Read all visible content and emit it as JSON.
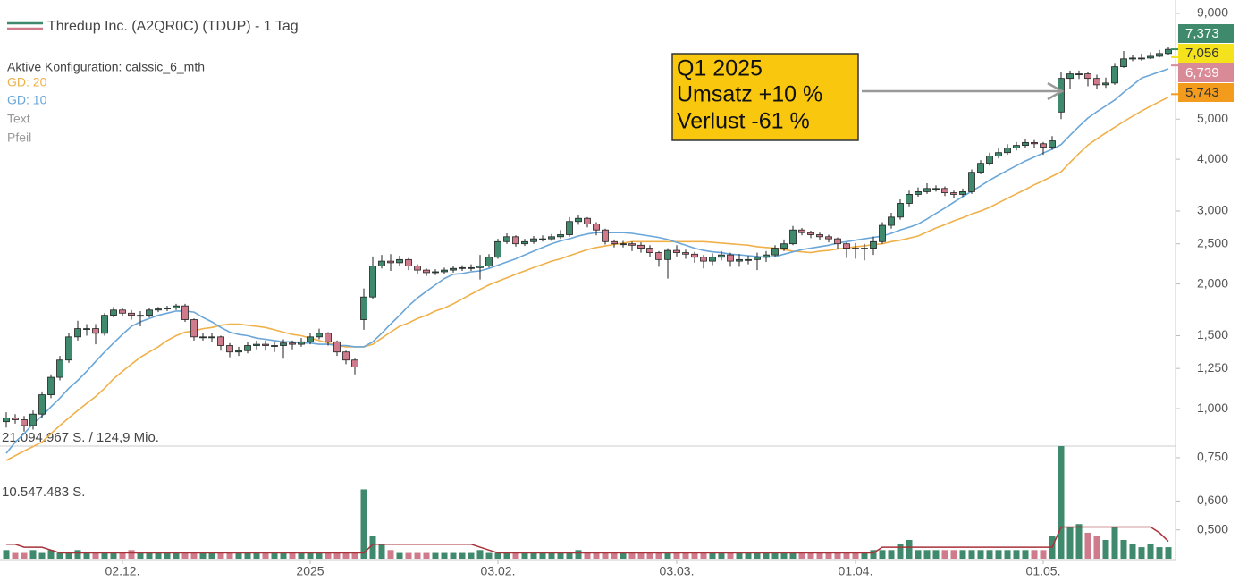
{
  "chart_data": {
    "type": "candlestick",
    "title": "Thredup Inc. (A2QR0C) (TDUP) - 1 Tag",
    "subtitle": "Aktive Konfiguration: calssic_6_mth",
    "legend_items": [
      "Text",
      "Pfeil"
    ],
    "log_scale": true,
    "grid": false,
    "up_color": "#3f8a6c",
    "down_color": "#cf7b8b",
    "ylim": [
      0.82,
      9.55
    ],
    "yticks": [
      {
        "value": 1,
        "label": "1,000"
      },
      {
        "value": 1.25,
        "label": "1,250"
      },
      {
        "value": 1.5,
        "label": "1,500"
      },
      {
        "value": 2,
        "label": "2,000"
      },
      {
        "value": 2.5,
        "label": "2,500"
      },
      {
        "value": 3,
        "label": "3,000"
      },
      {
        "value": 4,
        "label": "4,000"
      },
      {
        "value": 5,
        "label": "5,000"
      },
      {
        "value": 9,
        "label": "9,000"
      }
    ],
    "xlim": [
      -0.5,
      130.5
    ],
    "xticks": [
      {
        "value": 13,
        "label": "02.12."
      },
      {
        "value": 34,
        "label": "2025"
      },
      {
        "value": 55,
        "label": "03.02."
      },
      {
        "value": 75,
        "label": "03.03."
      },
      {
        "value": 95,
        "label": "01.04."
      },
      {
        "value": 116,
        "label": "01.05."
      }
    ],
    "open": [
      0.93,
      0.95,
      0.94,
      0.91,
      0.97,
      1.08,
      1.19,
      1.31,
      1.49,
      1.56,
      1.56,
      1.52,
      1.68,
      1.73,
      1.7,
      1.68,
      1.68,
      1.73,
      1.74,
      1.75,
      1.77,
      1.64,
      1.49,
      1.49,
      1.49,
      1.42,
      1.37,
      1.38,
      1.42,
      1.43,
      1.42,
      1.42,
      1.44,
      1.43,
      1.45,
      1.49,
      1.52,
      1.45,
      1.37,
      1.31,
      1.64,
      1.86,
      2.21,
      2.27,
      2.25,
      2.29,
      2.21,
      2.16,
      2.13,
      2.14,
      2.16,
      2.18,
      2.19,
      2.19,
      2.21,
      2.32,
      2.53,
      2.6,
      2.5,
      2.53,
      2.57,
      2.57,
      2.6,
      2.63,
      2.83,
      2.88,
      2.79,
      2.7,
      2.53,
      2.5,
      2.5,
      2.48,
      2.44,
      2.38,
      2.29,
      2.41,
      2.38,
      2.36,
      2.32,
      2.27,
      2.32,
      2.35,
      2.27,
      2.29,
      2.29,
      2.32,
      2.35,
      2.44,
      2.5,
      2.7,
      2.66,
      2.63,
      2.6,
      2.57,
      2.5,
      2.44,
      2.43,
      2.44,
      2.53,
      2.77,
      2.9,
      3.13,
      3.29,
      3.34,
      3.4,
      3.4,
      3.32,
      3.29,
      3.34,
      3.72,
      3.91,
      4.07,
      4.15,
      4.26,
      4.32,
      4.39,
      4.36,
      4.28,
      5.2,
      6.27,
      6.43,
      6.43,
      6.27,
      6.05,
      6.11,
      6.69,
      6.99,
      7.02,
      7.02,
      7.09,
      7.2
    ],
    "high": [
      0.98,
      0.97,
      0.96,
      0.99,
      1.1,
      1.21,
      1.34,
      1.52,
      1.63,
      1.6,
      1.6,
      1.7,
      1.76,
      1.75,
      1.73,
      1.72,
      1.75,
      1.76,
      1.77,
      1.79,
      1.79,
      1.65,
      1.52,
      1.52,
      1.5,
      1.44,
      1.41,
      1.45,
      1.46,
      1.46,
      1.45,
      1.47,
      1.46,
      1.48,
      1.52,
      1.56,
      1.53,
      1.46,
      1.38,
      1.32,
      1.95,
      2.33,
      2.35,
      2.36,
      2.34,
      2.31,
      2.23,
      2.18,
      2.17,
      2.19,
      2.21,
      2.22,
      2.23,
      2.35,
      2.36,
      2.57,
      2.65,
      2.62,
      2.57,
      2.61,
      2.62,
      2.64,
      2.7,
      2.9,
      2.93,
      2.9,
      2.82,
      2.72,
      2.56,
      2.54,
      2.53,
      2.52,
      2.48,
      2.4,
      2.44,
      2.48,
      2.42,
      2.39,
      2.35,
      2.37,
      2.4,
      2.38,
      2.36,
      2.34,
      2.38,
      2.4,
      2.48,
      2.56,
      2.76,
      2.73,
      2.69,
      2.66,
      2.63,
      2.59,
      2.52,
      2.51,
      2.5,
      2.6,
      2.82,
      2.97,
      3.2,
      3.36,
      3.42,
      3.5,
      3.46,
      3.44,
      3.36,
      3.4,
      3.78,
      3.98,
      4.15,
      4.25,
      4.35,
      4.4,
      4.48,
      4.45,
      4.4,
      4.55,
      6.5,
      6.55,
      6.55,
      6.5,
      6.4,
      6.3,
      6.8,
      7.3,
      7.15,
      7.2,
      7.25,
      7.35,
      7.45
    ],
    "low": [
      0.9,
      0.92,
      0.88,
      0.89,
      0.95,
      1.06,
      1.17,
      1.29,
      1.46,
      1.5,
      1.43,
      1.5,
      1.66,
      1.67,
      1.64,
      1.58,
      1.66,
      1.71,
      1.72,
      1.73,
      1.62,
      1.46,
      1.46,
      1.45,
      1.38,
      1.33,
      1.34,
      1.36,
      1.39,
      1.38,
      1.37,
      1.32,
      1.39,
      1.41,
      1.43,
      1.47,
      1.42,
      1.34,
      1.28,
      1.21,
      1.55,
      1.84,
      2.18,
      2.15,
      2.21,
      2.16,
      2.12,
      2.09,
      2.1,
      2.11,
      2.13,
      2.15,
      2.15,
      2.05,
      2.19,
      2.3,
      2.5,
      2.46,
      2.47,
      2.5,
      2.53,
      2.54,
      2.57,
      2.6,
      2.78,
      2.74,
      2.62,
      2.49,
      2.45,
      2.45,
      2.4,
      2.38,
      2.32,
      2.2,
      2.06,
      2.33,
      2.3,
      2.25,
      2.18,
      2.22,
      2.28,
      2.2,
      2.2,
      2.23,
      2.16,
      2.26,
      2.33,
      2.4,
      2.48,
      2.62,
      2.58,
      2.55,
      2.52,
      2.43,
      2.31,
      2.3,
      2.28,
      2.35,
      2.5,
      2.72,
      2.86,
      3.08,
      3.25,
      3.3,
      3.34,
      3.26,
      3.23,
      3.25,
      3.3,
      3.68,
      3.86,
      4.02,
      4.1,
      4.2,
      4.26,
      4.25,
      4.1,
      4.22,
      5.0,
      5.9,
      6.25,
      6.0,
      5.9,
      5.95,
      6.05,
      6.65,
      6.9,
      6.92,
      6.98,
      7.05,
      7.15
    ],
    "close": [
      0.95,
      0.94,
      0.91,
      0.97,
      1.08,
      1.19,
      1.31,
      1.49,
      1.56,
      1.56,
      1.52,
      1.68,
      1.73,
      1.7,
      1.68,
      1.68,
      1.73,
      1.74,
      1.75,
      1.77,
      1.64,
      1.49,
      1.49,
      1.49,
      1.42,
      1.37,
      1.38,
      1.42,
      1.43,
      1.42,
      1.42,
      1.44,
      1.43,
      1.45,
      1.49,
      1.52,
      1.45,
      1.37,
      1.31,
      1.26,
      1.86,
      2.21,
      2.27,
      2.25,
      2.29,
      2.21,
      2.16,
      2.13,
      2.14,
      2.16,
      2.18,
      2.19,
      2.19,
      2.21,
      2.32,
      2.53,
      2.6,
      2.5,
      2.53,
      2.57,
      2.57,
      2.6,
      2.63,
      2.83,
      2.88,
      2.79,
      2.7,
      2.53,
      2.5,
      2.5,
      2.48,
      2.44,
      2.38,
      2.29,
      2.41,
      2.38,
      2.36,
      2.32,
      2.27,
      2.32,
      2.35,
      2.27,
      2.29,
      2.29,
      2.32,
      2.35,
      2.44,
      2.5,
      2.7,
      2.66,
      2.63,
      2.6,
      2.57,
      2.5,
      2.44,
      2.43,
      2.44,
      2.53,
      2.77,
      2.9,
      3.13,
      3.29,
      3.34,
      3.4,
      3.4,
      3.32,
      3.29,
      3.34,
      3.72,
      3.91,
      4.07,
      4.15,
      4.26,
      4.32,
      4.39,
      4.36,
      4.28,
      4.43,
      6.27,
      6.43,
      6.43,
      6.27,
      6.05,
      6.11,
      6.69,
      6.99,
      7.02,
      7.02,
      7.09,
      7.2,
      7.37
    ],
    "series": [
      {
        "name": "GD: 20",
        "color": "#f0b04a",
        "values": [
          0.75,
          0.77,
          0.79,
          0.81,
          0.83,
          0.87,
          0.91,
          0.95,
          0.99,
          1.03,
          1.07,
          1.12,
          1.18,
          1.23,
          1.28,
          1.33,
          1.37,
          1.41,
          1.46,
          1.5,
          1.53,
          1.54,
          1.56,
          1.57,
          1.59,
          1.6,
          1.6,
          1.59,
          1.58,
          1.57,
          1.55,
          1.53,
          1.51,
          1.5,
          1.48,
          1.46,
          1.44,
          1.42,
          1.41,
          1.41,
          1.41,
          1.43,
          1.48,
          1.53,
          1.58,
          1.61,
          1.65,
          1.68,
          1.72,
          1.75,
          1.79,
          1.84,
          1.89,
          1.94,
          1.99,
          2.03,
          2.07,
          2.11,
          2.15,
          2.19,
          2.23,
          2.27,
          2.3,
          2.34,
          2.38,
          2.42,
          2.45,
          2.47,
          2.49,
          2.51,
          2.53,
          2.53,
          2.53,
          2.53,
          2.53,
          2.53,
          2.53,
          2.53,
          2.53,
          2.52,
          2.51,
          2.5,
          2.49,
          2.48,
          2.46,
          2.45,
          2.44,
          2.42,
          2.4,
          2.39,
          2.38,
          2.4,
          2.41,
          2.43,
          2.44,
          2.46,
          2.47,
          2.49,
          2.5,
          2.53,
          2.55,
          2.58,
          2.61,
          2.67,
          2.73,
          2.78,
          2.84,
          2.89,
          2.95,
          3.0,
          3.06,
          3.14,
          3.22,
          3.3,
          3.38,
          3.47,
          3.55,
          3.64,
          3.73,
          3.93,
          4.13,
          4.33,
          4.48,
          4.63,
          4.78,
          4.93,
          5.08,
          5.23,
          5.37,
          5.51,
          5.65
        ]
      },
      {
        "name": "GD: 10",
        "color": "#6aa6d8",
        "values": [
          0.78,
          0.83,
          0.87,
          0.92,
          0.96,
          1.01,
          1.06,
          1.12,
          1.17,
          1.23,
          1.3,
          1.37,
          1.44,
          1.51,
          1.58,
          1.62,
          1.65,
          1.68,
          1.7,
          1.72,
          1.72,
          1.71,
          1.66,
          1.62,
          1.57,
          1.53,
          1.51,
          1.5,
          1.48,
          1.47,
          1.46,
          1.45,
          1.45,
          1.44,
          1.44,
          1.43,
          1.43,
          1.42,
          1.42,
          1.41,
          1.41,
          1.45,
          1.52,
          1.6,
          1.68,
          1.77,
          1.85,
          1.92,
          1.99,
          2.06,
          2.11,
          2.12,
          2.14,
          2.15,
          2.18,
          2.22,
          2.26,
          2.3,
          2.35,
          2.4,
          2.45,
          2.5,
          2.54,
          2.57,
          2.61,
          2.64,
          2.66,
          2.66,
          2.66,
          2.66,
          2.65,
          2.63,
          2.61,
          2.59,
          2.56,
          2.52,
          2.48,
          2.44,
          2.41,
          2.39,
          2.38,
          2.36,
          2.35,
          2.34,
          2.33,
          2.32,
          2.33,
          2.36,
          2.39,
          2.42,
          2.44,
          2.46,
          2.48,
          2.51,
          2.53,
          2.55,
          2.57,
          2.59,
          2.61,
          2.65,
          2.7,
          2.74,
          2.79,
          2.87,
          2.96,
          3.05,
          3.15,
          3.25,
          3.35,
          3.45,
          3.56,
          3.66,
          3.76,
          3.86,
          3.96,
          4.05,
          4.14,
          4.23,
          4.34,
          4.57,
          4.8,
          5.03,
          5.21,
          5.38,
          5.56,
          5.8,
          6.04,
          6.28,
          6.39,
          6.5,
          6.61
        ]
      }
    ],
    "volume": {
      "labels": [
        "21.094.967 S. / 124,9 Mio.",
        "10.547.483 S."
      ],
      "ylim": [
        0.4,
        0.79
      ],
      "yticks": [
        {
          "value": 0.5,
          "label": "0,500"
        },
        {
          "value": 0.6,
          "label": "0,600"
        },
        {
          "value": 0.75,
          "label": "0,750"
        }
      ],
      "values": [
        0.43,
        0.42,
        0.42,
        0.43,
        0.42,
        0.43,
        0.42,
        0.42,
        0.43,
        0.42,
        0.42,
        0.42,
        0.42,
        0.42,
        0.43,
        0.42,
        0.42,
        0.42,
        0.42,
        0.42,
        0.42,
        0.42,
        0.42,
        0.42,
        0.42,
        0.42,
        0.42,
        0.42,
        0.42,
        0.42,
        0.42,
        0.42,
        0.42,
        0.42,
        0.42,
        0.42,
        0.42,
        0.42,
        0.42,
        0.42,
        0.64,
        0.48,
        0.45,
        0.43,
        0.42,
        0.42,
        0.42,
        0.42,
        0.42,
        0.42,
        0.42,
        0.42,
        0.42,
        0.43,
        0.42,
        0.42,
        0.42,
        0.42,
        0.42,
        0.42,
        0.42,
        0.42,
        0.42,
        0.42,
        0.43,
        0.42,
        0.42,
        0.42,
        0.42,
        0.42,
        0.42,
        0.42,
        0.42,
        0.42,
        0.42,
        0.42,
        0.42,
        0.42,
        0.42,
        0.42,
        0.42,
        0.42,
        0.42,
        0.42,
        0.42,
        0.42,
        0.42,
        0.42,
        0.42,
        0.42,
        0.42,
        0.42,
        0.42,
        0.42,
        0.42,
        0.42,
        0.42,
        0.43,
        0.43,
        0.43,
        0.45,
        0.465,
        0.43,
        0.43,
        0.43,
        0.43,
        0.43,
        0.43,
        0.43,
        0.43,
        0.43,
        0.43,
        0.43,
        0.43,
        0.43,
        0.43,
        0.43,
        0.48,
        0.79,
        0.51,
        0.52,
        0.49,
        0.48,
        0.465,
        0.51,
        0.465,
        0.45,
        0.44,
        0.45,
        0.44,
        0.44
      ],
      "ma_color": "#a8323a",
      "ma": [
        0.45,
        0.45,
        0.44,
        0.44,
        0.44,
        0.43,
        0.42,
        0.42,
        0.42,
        0.42,
        0.42,
        0.42,
        0.42,
        0.42,
        0.42,
        0.42,
        0.42,
        0.42,
        0.42,
        0.42,
        0.42,
        0.42,
        0.42,
        0.42,
        0.42,
        0.42,
        0.42,
        0.42,
        0.42,
        0.42,
        0.42,
        0.42,
        0.42,
        0.42,
        0.42,
        0.42,
        0.42,
        0.42,
        0.42,
        0.42,
        0.42,
        0.45,
        0.45,
        0.45,
        0.45,
        0.45,
        0.45,
        0.45,
        0.45,
        0.45,
        0.45,
        0.45,
        0.45,
        0.44,
        0.43,
        0.42,
        0.42,
        0.42,
        0.42,
        0.42,
        0.42,
        0.42,
        0.42,
        0.42,
        0.42,
        0.42,
        0.42,
        0.42,
        0.42,
        0.42,
        0.42,
        0.42,
        0.42,
        0.42,
        0.42,
        0.42,
        0.42,
        0.42,
        0.42,
        0.42,
        0.42,
        0.42,
        0.42,
        0.42,
        0.42,
        0.42,
        0.42,
        0.42,
        0.42,
        0.42,
        0.42,
        0.42,
        0.42,
        0.42,
        0.42,
        0.42,
        0.42,
        0.42,
        0.44,
        0.44,
        0.44,
        0.44,
        0.44,
        0.44,
        0.44,
        0.44,
        0.44,
        0.44,
        0.44,
        0.44,
        0.44,
        0.44,
        0.44,
        0.44,
        0.44,
        0.44,
        0.44,
        0.44,
        0.51,
        0.51,
        0.51,
        0.51,
        0.51,
        0.51,
        0.51,
        0.51,
        0.51,
        0.51,
        0.51,
        0.49,
        0.46
      ]
    },
    "last_values": [
      {
        "label": "7,373",
        "value": 7.373,
        "color": "#3f8a6c",
        "text_color": "#ffffff"
      },
      {
        "label": "7,056",
        "value": 7.056,
        "color": "#f3e21c",
        "text_color": "#333333"
      },
      {
        "label": "6,739",
        "value": 6.739,
        "color": "#d98a97",
        "text_color": "#ffffff"
      },
      {
        "label": "5,743",
        "value": 5.743,
        "color": "#f29b1d",
        "text_color": "#333333"
      }
    ],
    "annotation": {
      "lines": [
        "Q1 2025",
        "Umsatz +10 %",
        "Verlust -61 %"
      ]
    }
  }
}
